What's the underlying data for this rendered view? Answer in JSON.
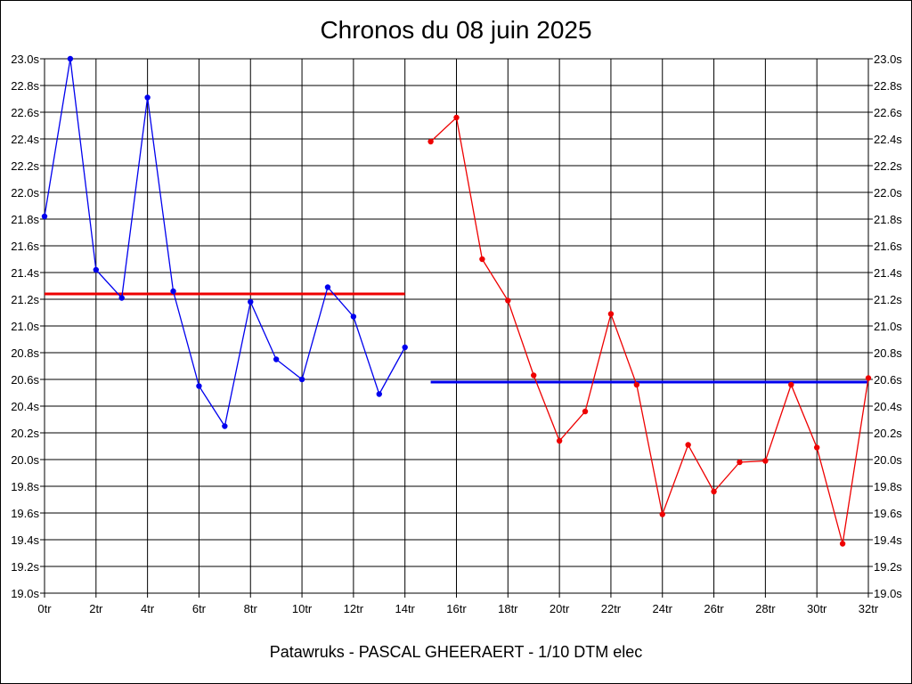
{
  "chart_data": {
    "type": "line",
    "title": "Chronos du 08 juin 2025",
    "subtitle": "Patawruks - PASCAL GHEERAERT - 1/10 DTM elec",
    "xlabel": "",
    "ylabel": "",
    "xlim": [
      0,
      32
    ],
    "ylim": [
      19.0,
      23.0
    ],
    "grid": true,
    "x_tick_labels": [
      "0tr",
      "2tr",
      "4tr",
      "6tr",
      "8tr",
      "10tr",
      "12tr",
      "14tr",
      "16tr",
      "18tr",
      "20tr",
      "22tr",
      "24tr",
      "26tr",
      "28tr",
      "30tr",
      "32tr"
    ],
    "x_tick_values": [
      0,
      2,
      4,
      6,
      8,
      10,
      12,
      14,
      16,
      18,
      20,
      22,
      24,
      26,
      28,
      30,
      32
    ],
    "y_tick_labels": [
      "19.0s",
      "19.2s",
      "19.4s",
      "19.6s",
      "19.8s",
      "20.0s",
      "20.2s",
      "20.4s",
      "20.6s",
      "20.8s",
      "21.0s",
      "21.2s",
      "21.4s",
      "21.6s",
      "21.8s",
      "22.0s",
      "22.2s",
      "22.4s",
      "22.6s",
      "22.8s",
      "23.0s"
    ],
    "y_tick_values": [
      19.0,
      19.2,
      19.4,
      19.6,
      19.8,
      20.0,
      20.2,
      20.4,
      20.6,
      20.8,
      21.0,
      21.2,
      21.4,
      21.6,
      21.8,
      22.0,
      22.2,
      22.4,
      22.6,
      22.8,
      23.0
    ],
    "series": [
      {
        "color": "#0000ee",
        "x": [
          0,
          1,
          2,
          3,
          4,
          5,
          6,
          7,
          8,
          9,
          10,
          11,
          12,
          13,
          14
        ],
        "values": [
          21.82,
          23.0,
          21.42,
          21.21,
          22.71,
          21.26,
          20.55,
          20.25,
          21.18,
          20.75,
          20.6,
          21.29,
          21.07,
          20.49,
          20.84
        ]
      },
      {
        "color": "#ee0000",
        "x": [
          15,
          16,
          17,
          18,
          19,
          20,
          21,
          22,
          23,
          24,
          25,
          26,
          27,
          28,
          29,
          30,
          31,
          32
        ],
        "values": [
          22.38,
          22.56,
          21.5,
          21.19,
          20.63,
          20.14,
          20.36,
          21.09,
          20.56,
          19.59,
          20.11,
          19.76,
          19.98,
          19.99,
          20.56,
          20.09,
          19.37,
          20.61
        ]
      }
    ],
    "reference_lines": [
      {
        "color": "#ee0000",
        "x": [
          0,
          14
        ],
        "value": 21.24
      },
      {
        "color": "#0000ee",
        "x": [
          15,
          32
        ],
        "value": 20.58
      }
    ]
  }
}
